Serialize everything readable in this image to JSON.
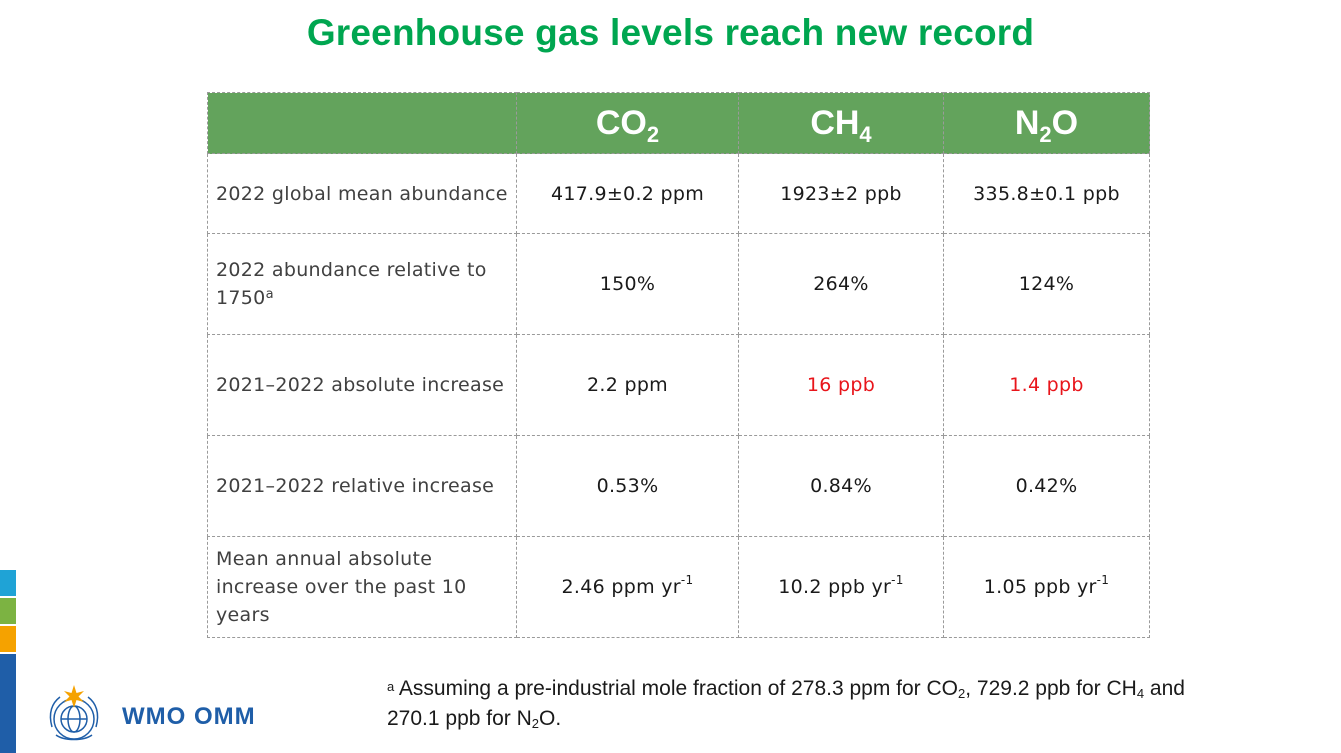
{
  "title": "Greenhouse gas levels reach new record",
  "colors": {
    "title": "#00a650",
    "header_bg": "#63a35c",
    "highlight": "#e8151b",
    "logo_blue": "#1f5ea8",
    "side_bars": [
      "#1fa3d6",
      "#7cb342",
      "#f5a200",
      "#1f5ea8"
    ]
  },
  "table": {
    "headers": [
      {
        "base": "CO",
        "sub": "2"
      },
      {
        "base": "CH",
        "sub": "4"
      },
      {
        "base": "N",
        "sub": "2",
        "tail": "O"
      }
    ],
    "rows": [
      {
        "label": "2022 global mean abundance",
        "values": [
          "417.9±0.2 ppm",
          "1923±2 ppb",
          "335.8±0.1 ppb"
        ]
      },
      {
        "label": "2022 abundance relative to 1750",
        "label_sup": "a",
        "values": [
          "150%",
          "264%",
          "124%"
        ]
      },
      {
        "label": "2021–2022 absolute increase",
        "values": [
          "2.2 ppm",
          "16 ppb",
          "1.4 ppb"
        ],
        "highlight": [
          false,
          true,
          true
        ]
      },
      {
        "label": "2021–2022 relative increase",
        "values": [
          "0.53%",
          "0.84%",
          "0.42%"
        ]
      },
      {
        "label": "Mean annual absolute increase over the past 10 years",
        "values": [
          "2.46 ppm yr",
          "10.2 ppb yr",
          "1.05 ppb yr"
        ],
        "value_sup": "-1"
      }
    ]
  },
  "footnote": {
    "marker": "a",
    "p1": " Assuming a pre-industrial mole fraction of 278.3 ppm for CO",
    "s1": "2",
    "p2": ", 729.2 ppb for CH",
    "s2": "4",
    "p3": " and",
    "p4": "270.1 ppb for N",
    "s3": "2",
    "p5": "O."
  },
  "logo": {
    "text": "WMO OMM",
    "icon": "wmo-emblem-icon"
  }
}
